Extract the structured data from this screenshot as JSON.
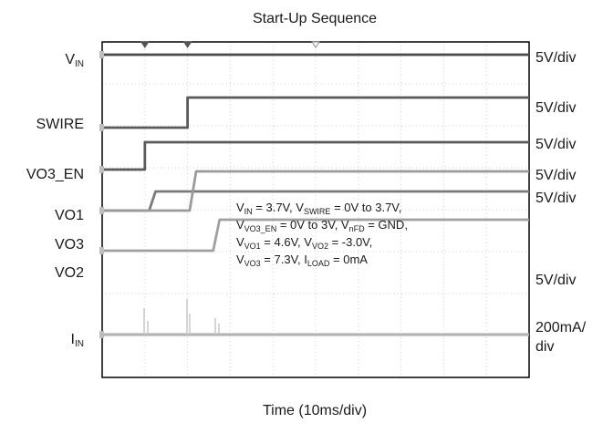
{
  "chart_data": {
    "type": "line",
    "title": "Start-Up Sequence",
    "xlabel": "Time (10ms/div)",
    "x_unit": "ms",
    "x_range": [
      0,
      100
    ],
    "divisions": {
      "x": 10,
      "y": 8
    },
    "trigger_markers_ms": [
      10,
      20,
      50
    ],
    "channels": [
      {
        "label": "V",
        "label_sub": "IN",
        "scale": "5V/div",
        "points": [
          [
            0,
            3.7
          ],
          [
            100,
            3.7
          ]
        ]
      },
      {
        "label": "SWIRE",
        "scale": "5V/div",
        "points": [
          [
            0,
            0
          ],
          [
            20,
            0
          ],
          [
            20,
            3.7
          ],
          [
            100,
            3.7
          ]
        ]
      },
      {
        "label": "VO3_EN",
        "scale": "5V/div",
        "points": [
          [
            0,
            0
          ],
          [
            10,
            0
          ],
          [
            10,
            3
          ],
          [
            100,
            3
          ]
        ]
      },
      {
        "label": "VO1",
        "scale": "5V/div",
        "points": [
          [
            0,
            0
          ],
          [
            11,
            0
          ],
          [
            12.5,
            4.6
          ],
          [
            100,
            4.6
          ]
        ]
      },
      {
        "label": "VO3",
        "scale": "5V/div",
        "points": [
          [
            0,
            0
          ],
          [
            20.5,
            0
          ],
          [
            22,
            7.3
          ],
          [
            100,
            7.3
          ]
        ]
      },
      {
        "label": "VO2",
        "scale": "5V/div",
        "points": [
          [
            0,
            0
          ],
          [
            26,
            0
          ],
          [
            27.5,
            -3.0
          ],
          [
            100,
            -3.0
          ]
        ]
      },
      {
        "label": "I",
        "label_sub": "IN",
        "scale": "200mA/",
        "scale_line2": "div",
        "unit": "mA",
        "points": [
          [
            0,
            0
          ],
          [
            100,
            0
          ]
        ]
      }
    ],
    "annotation": [
      [
        [
          "V",
          ""
        ],
        [
          "IN",
          "sub"
        ],
        [
          " = 3.7V, V",
          ""
        ],
        [
          "SWIRE",
          "sub"
        ],
        [
          " = 0V to 3.7V,",
          ""
        ]
      ],
      [
        [
          "V",
          ""
        ],
        [
          "VO3_EN",
          "sub"
        ],
        [
          " = 0V to 3V, V",
          ""
        ],
        [
          "nFD",
          "sub"
        ],
        [
          " = GND,",
          ""
        ]
      ],
      [
        [
          "V",
          ""
        ],
        [
          "VO1",
          "sub"
        ],
        [
          " = 4.6V, V",
          ""
        ],
        [
          "VO2",
          "sub"
        ],
        [
          " = -3.0V,",
          ""
        ]
      ],
      [
        [
          "V",
          ""
        ],
        [
          "VO3",
          "sub"
        ],
        [
          " = 7.3V, I",
          ""
        ],
        [
          "LOAD",
          "sub"
        ],
        [
          " = 0mA",
          ""
        ]
      ]
    ]
  }
}
